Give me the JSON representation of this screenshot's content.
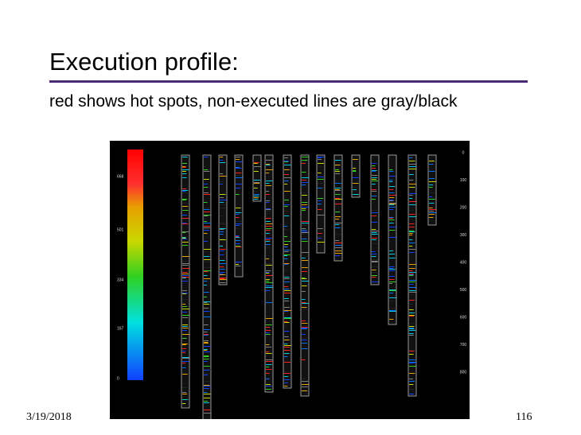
{
  "slide": {
    "title": "Execution profile:",
    "subtitle": "red shows hot spots, non-executed lines are gray/black",
    "date": "3/19/2018",
    "page_number": "116"
  },
  "image": {
    "left_scale_labels": [
      "668",
      "501",
      "334",
      "167",
      "0"
    ],
    "right_axis_labels": [
      "0",
      "100",
      "200",
      "300",
      "400",
      "500",
      "600",
      "700",
      "800"
    ]
  }
}
